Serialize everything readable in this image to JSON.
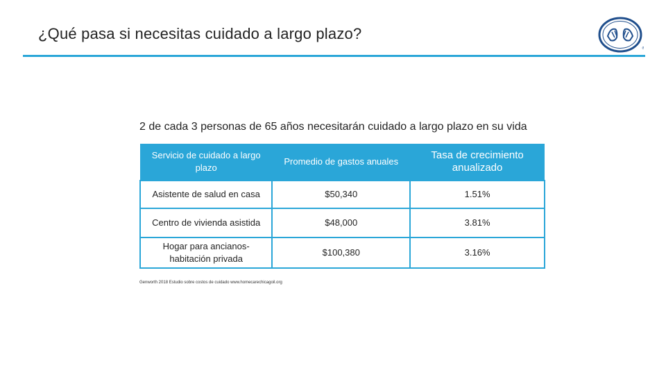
{
  "slide": {
    "title": "¿Qué pasa si necesitas cuidado a largo plazo?",
    "subtitle": "2 de cada 3 personas de 65 años necesitarán cuidado a largo plazo en su vida",
    "source": "Genworth 2018 Estudio sobre costos de cuidado www.homecarechicagoil.org",
    "accent_color": "#2aa6d8",
    "logo_icon": "allstate-hands-logo"
  },
  "table": {
    "headers": [
      "Servicio de cuidado a largo plazo",
      "Promedio de gastos anuales",
      "Tasa de crecimiento anualizado"
    ],
    "rows": [
      [
        "Asistente de salud en casa",
        "$50,340",
        "1.51%"
      ],
      [
        "Centro de vivienda asistida",
        "$48,000",
        "3.81%"
      ],
      [
        "Hogar para ancianos- habitación privada",
        "$100,380",
        "3.16%"
      ]
    ]
  }
}
